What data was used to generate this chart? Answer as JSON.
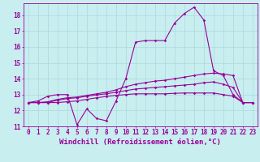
{
  "title": "",
  "xlabel": "Windchill (Refroidissement éolien,°C)",
  "bg_color": "#c8eef0",
  "grid_color": "#b0dde0",
  "line_color": "#990099",
  "x": [
    0,
    1,
    2,
    3,
    4,
    5,
    6,
    7,
    8,
    9,
    10,
    11,
    12,
    13,
    14,
    15,
    16,
    17,
    18,
    19,
    20,
    21,
    22,
    23
  ],
  "y_main": [
    12.5,
    12.6,
    12.9,
    13.0,
    13.0,
    11.1,
    12.1,
    11.5,
    11.35,
    12.6,
    14.0,
    16.3,
    16.4,
    16.4,
    16.4,
    17.5,
    18.1,
    18.5,
    17.7,
    14.5,
    14.2,
    13.0,
    12.5,
    12.5
  ],
  "y_line2": [
    12.5,
    12.5,
    12.55,
    12.7,
    12.8,
    12.85,
    12.95,
    13.05,
    13.15,
    13.3,
    13.5,
    13.65,
    13.75,
    13.85,
    13.9,
    14.0,
    14.1,
    14.2,
    14.3,
    14.35,
    14.3,
    14.2,
    12.5,
    12.5
  ],
  "y_line3": [
    12.5,
    12.5,
    12.5,
    12.65,
    12.75,
    12.8,
    12.9,
    12.98,
    13.05,
    13.15,
    13.25,
    13.35,
    13.4,
    13.45,
    13.5,
    13.55,
    13.6,
    13.65,
    13.75,
    13.8,
    13.65,
    13.45,
    12.5,
    12.5
  ],
  "y_line4": [
    12.5,
    12.5,
    12.5,
    12.5,
    12.55,
    12.6,
    12.7,
    12.8,
    12.88,
    12.95,
    13.0,
    13.05,
    13.05,
    13.05,
    13.05,
    13.08,
    13.1,
    13.1,
    13.1,
    13.1,
    13.0,
    12.9,
    12.5,
    12.5
  ],
  "ylim": [
    11.0,
    18.75
  ],
  "xlim": [
    -0.5,
    23.5
  ],
  "yticks": [
    11,
    12,
    13,
    14,
    15,
    16,
    17,
    18
  ],
  "xticks": [
    0,
    1,
    2,
    3,
    4,
    5,
    6,
    7,
    8,
    9,
    10,
    11,
    12,
    13,
    14,
    15,
    16,
    17,
    18,
    19,
    20,
    21,
    22,
    23
  ],
  "fontsize_xlabel": 6.5,
  "fontsize_ticks": 5.5,
  "marker": "D",
  "markersize": 1.8,
  "linewidth": 0.8
}
